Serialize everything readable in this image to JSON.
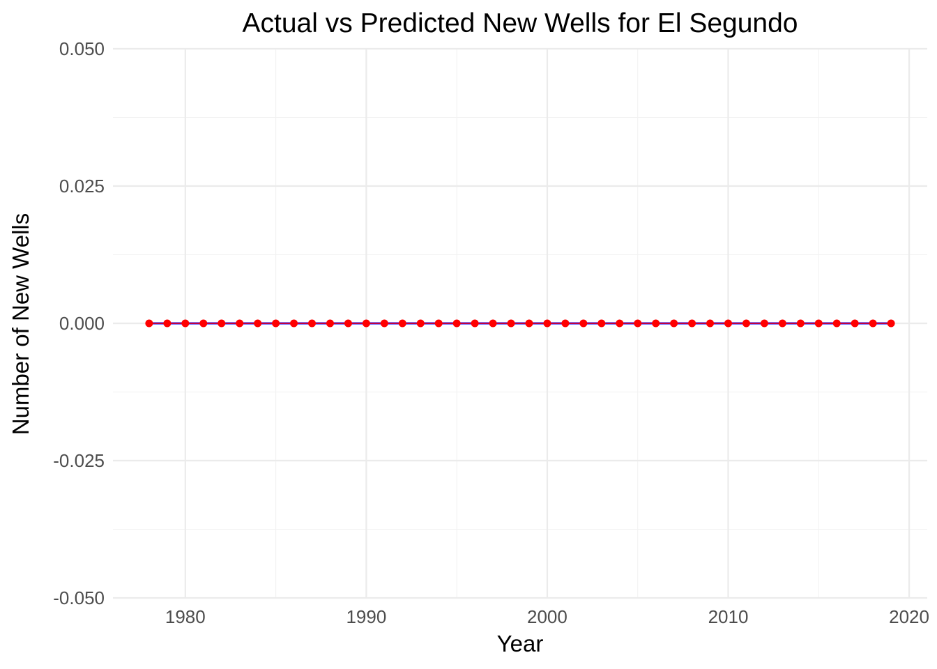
{
  "chart_data": {
    "type": "line",
    "title": "Actual vs Predicted New Wells for El Segundo",
    "xlabel": "Year",
    "ylabel": "Number of New Wells",
    "xlim": [
      1976,
      2021
    ],
    "ylim": [
      -0.05,
      0.05
    ],
    "x_ticks": [
      1980,
      1990,
      2000,
      2010,
      2020
    ],
    "x_tick_labels": [
      "1980",
      "1990",
      "2000",
      "2010",
      "2020"
    ],
    "y_ticks": [
      -0.05,
      -0.025,
      0.0,
      0.025,
      0.05
    ],
    "y_tick_labels": [
      "-0.050",
      "-0.025",
      "0.000",
      "0.025",
      "0.050"
    ],
    "grid": true,
    "legend": "none",
    "x": [
      1978,
      1979,
      1980,
      1981,
      1982,
      1983,
      1984,
      1985,
      1986,
      1987,
      1988,
      1989,
      1990,
      1991,
      1992,
      1993,
      1994,
      1995,
      1996,
      1997,
      1998,
      1999,
      2000,
      2001,
      2002,
      2003,
      2004,
      2005,
      2006,
      2007,
      2008,
      2009,
      2010,
      2011,
      2012,
      2013,
      2014,
      2015,
      2016,
      2017,
      2018,
      2019
    ],
    "series": [
      {
        "color": "#0000ff",
        "style": "line",
        "values": [
          0,
          0,
          0,
          0,
          0,
          0,
          0,
          0,
          0,
          0,
          0,
          0,
          0,
          0,
          0,
          0,
          0,
          0,
          0,
          0,
          0,
          0,
          0,
          0,
          0,
          0,
          0,
          0,
          0,
          0,
          0,
          0,
          0,
          0,
          0,
          0,
          0,
          0,
          0,
          0,
          0,
          0
        ]
      },
      {
        "color": "#ff0000",
        "style": "line+points",
        "values": [
          0,
          0,
          0,
          0,
          0,
          0,
          0,
          0,
          0,
          0,
          0,
          0,
          0,
          0,
          0,
          0,
          0,
          0,
          0,
          0,
          0,
          0,
          0,
          0,
          0,
          0,
          0,
          0,
          0,
          0,
          0,
          0,
          0,
          0,
          0,
          0,
          0,
          0,
          0,
          0,
          0,
          0
        ]
      }
    ]
  }
}
